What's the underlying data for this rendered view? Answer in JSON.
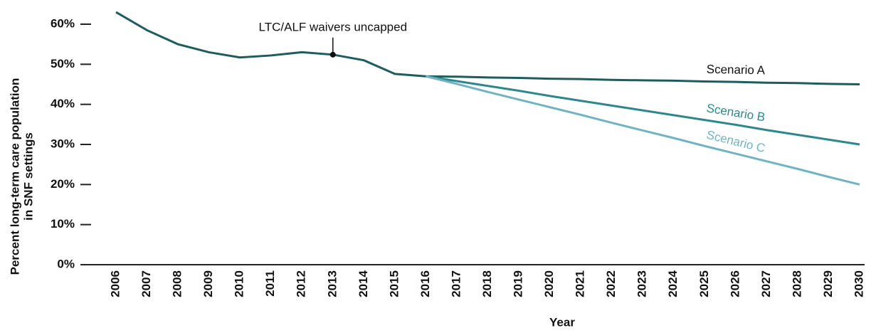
{
  "chart_data": {
    "type": "line",
    "x_label": "Year",
    "y_label": [
      "Percent long-term care population",
      "in SNF settings"
    ],
    "categories": [
      "2006",
      "2007",
      "2008",
      "2009",
      "2010",
      "2011",
      "2012",
      "2013",
      "2014",
      "2015",
      "2016",
      "2017",
      "2018",
      "2019",
      "2020",
      "2021",
      "2022",
      "2023",
      "2024",
      "2025",
      "2026",
      "2027",
      "2028",
      "2029",
      "2030"
    ],
    "series": [
      {
        "name": "Scenario A",
        "color": "#1f5c5e",
        "values": [
          63,
          58.5,
          55,
          53,
          51.7,
          52.2,
          53,
          52.4,
          51,
          47.6,
          47,
          46.9,
          46.7,
          46.6,
          46.4,
          46.3,
          46.1,
          46,
          45.9,
          45.7,
          45.6,
          45.4,
          45.3,
          45.1,
          45
        ]
      },
      {
        "name": "Scenario B",
        "color": "#2e878c",
        "values": [
          null,
          null,
          null,
          null,
          null,
          null,
          null,
          null,
          null,
          null,
          47,
          45.8,
          44.6,
          43.4,
          42.1,
          40.9,
          39.7,
          38.5,
          37.3,
          36.1,
          34.9,
          33.6,
          32.4,
          31.2,
          30
        ]
      },
      {
        "name": "Scenario C",
        "color": "#72b3c3",
        "values": [
          null,
          null,
          null,
          null,
          null,
          null,
          null,
          null,
          null,
          null,
          47,
          45.1,
          43.1,
          41.2,
          39.3,
          37.4,
          35.4,
          33.5,
          31.6,
          29.6,
          27.7,
          25.8,
          23.9,
          21.9,
          20
        ]
      }
    ],
    "annotation": {
      "text": "LTC/ALF waivers uncapped",
      "x": "2013"
    },
    "ylim": [
      0,
      60
    ],
    "yticks": [
      {
        "value": 0,
        "label": "0%"
      },
      {
        "value": 10,
        "label": "10%"
      },
      {
        "value": 20,
        "label": "20%"
      },
      {
        "value": 30,
        "label": "30%"
      },
      {
        "value": 40,
        "label": "40%"
      },
      {
        "value": 50,
        "label": "50%"
      },
      {
        "value": 60,
        "label": "60%"
      }
    ]
  }
}
